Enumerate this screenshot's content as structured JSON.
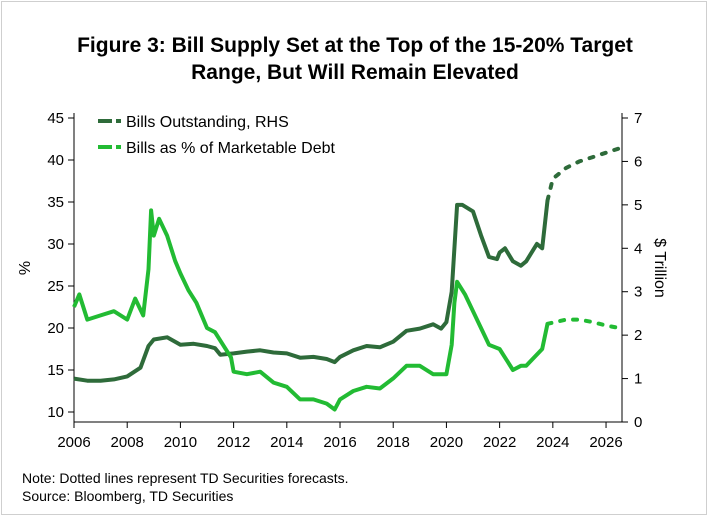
{
  "chart_data": {
    "type": "line",
    "title_lines": [
      "Figure 3: Bill Supply Set at the Top of the 15-20% Target",
      "Range, But Will Remain Elevated"
    ],
    "ylabel_left": "%",
    "ylabel_right": "$ Trillion",
    "ylim_left": [
      10,
      45
    ],
    "ylim_right": [
      0,
      7
    ],
    "xlim": [
      2006,
      2026.6
    ],
    "x_ticks": [
      "2006",
      "2008",
      "2010",
      "2012",
      "2014",
      "2016",
      "2018",
      "2020",
      "2022",
      "2024",
      "2026"
    ],
    "y_left_ticks": [
      "10",
      "15",
      "20",
      "25",
      "30",
      "35",
      "40",
      "45"
    ],
    "y_right_ticks": [
      "0",
      "1",
      "2",
      "3",
      "4",
      "5",
      "6",
      "7"
    ],
    "grid": false,
    "legend_position": "top-left",
    "series": [
      {
        "name": "Bills Outstanding, RHS",
        "axis": "right",
        "color": "#2e6b3a",
        "points": [
          [
            2006.0,
            1.0
          ],
          [
            2006.5,
            0.95
          ],
          [
            2007.0,
            0.95
          ],
          [
            2007.5,
            0.98
          ],
          [
            2008.0,
            1.05
          ],
          [
            2008.5,
            1.25
          ],
          [
            2008.8,
            1.75
          ],
          [
            2009.0,
            1.9
          ],
          [
            2009.5,
            1.95
          ],
          [
            2009.8,
            1.85
          ],
          [
            2010.0,
            1.78
          ],
          [
            2010.5,
            1.8
          ],
          [
            2011.0,
            1.75
          ],
          [
            2011.3,
            1.7
          ],
          [
            2011.5,
            1.55
          ],
          [
            2012.0,
            1.58
          ],
          [
            2012.5,
            1.62
          ],
          [
            2013.0,
            1.65
          ],
          [
            2013.5,
            1.6
          ],
          [
            2014.0,
            1.58
          ],
          [
            2014.5,
            1.48
          ],
          [
            2015.0,
            1.5
          ],
          [
            2015.5,
            1.45
          ],
          [
            2015.8,
            1.38
          ],
          [
            2016.0,
            1.5
          ],
          [
            2016.5,
            1.65
          ],
          [
            2017.0,
            1.75
          ],
          [
            2017.5,
            1.72
          ],
          [
            2018.0,
            1.85
          ],
          [
            2018.5,
            2.1
          ],
          [
            2019.0,
            2.15
          ],
          [
            2019.5,
            2.25
          ],
          [
            2019.8,
            2.15
          ],
          [
            2020.0,
            2.3
          ],
          [
            2020.2,
            3.0
          ],
          [
            2020.4,
            5.0
          ],
          [
            2020.6,
            5.0
          ],
          [
            2021.0,
            4.85
          ],
          [
            2021.3,
            4.3
          ],
          [
            2021.6,
            3.8
          ],
          [
            2021.9,
            3.75
          ],
          [
            2022.0,
            3.9
          ],
          [
            2022.2,
            4.0
          ],
          [
            2022.5,
            3.7
          ],
          [
            2022.8,
            3.6
          ],
          [
            2023.0,
            3.7
          ],
          [
            2023.4,
            4.1
          ],
          [
            2023.6,
            4.0
          ],
          [
            2023.8,
            5.1
          ]
        ],
        "forecast_points": [
          [
            2023.8,
            5.1
          ],
          [
            2024.0,
            5.6
          ],
          [
            2024.5,
            5.85
          ],
          [
            2025.0,
            6.0
          ],
          [
            2025.5,
            6.1
          ],
          [
            2026.0,
            6.2
          ],
          [
            2026.5,
            6.3
          ]
        ]
      },
      {
        "name": "Bills as % of Marketable Debt",
        "axis": "left",
        "color": "#22bb33",
        "points": [
          [
            2006.0,
            22.5
          ],
          [
            2006.2,
            24.0
          ],
          [
            2006.5,
            21.0
          ],
          [
            2007.0,
            21.5
          ],
          [
            2007.5,
            22.0
          ],
          [
            2008.0,
            21.0
          ],
          [
            2008.3,
            23.5
          ],
          [
            2008.6,
            21.5
          ],
          [
            2008.8,
            27.0
          ],
          [
            2008.9,
            34.0
          ],
          [
            2009.0,
            31.0
          ],
          [
            2009.2,
            33.0
          ],
          [
            2009.5,
            31.0
          ],
          [
            2009.8,
            28.0
          ],
          [
            2010.0,
            26.5
          ],
          [
            2010.3,
            24.5
          ],
          [
            2010.6,
            23.0
          ],
          [
            2011.0,
            20.0
          ],
          [
            2011.3,
            19.5
          ],
          [
            2011.6,
            18.0
          ],
          [
            2011.9,
            16.5
          ],
          [
            2012.0,
            14.8
          ],
          [
            2012.5,
            14.5
          ],
          [
            2013.0,
            14.8
          ],
          [
            2013.5,
            13.5
          ],
          [
            2014.0,
            13.0
          ],
          [
            2014.5,
            11.5
          ],
          [
            2015.0,
            11.5
          ],
          [
            2015.5,
            11.0
          ],
          [
            2015.8,
            10.3
          ],
          [
            2016.0,
            11.5
          ],
          [
            2016.5,
            12.5
          ],
          [
            2017.0,
            13.0
          ],
          [
            2017.5,
            12.8
          ],
          [
            2018.0,
            14.0
          ],
          [
            2018.5,
            15.5
          ],
          [
            2019.0,
            15.5
          ],
          [
            2019.5,
            14.5
          ],
          [
            2020.0,
            14.5
          ],
          [
            2020.2,
            18.0
          ],
          [
            2020.3,
            23.0
          ],
          [
            2020.4,
            25.5
          ],
          [
            2020.7,
            24.0
          ],
          [
            2021.0,
            22.0
          ],
          [
            2021.3,
            20.0
          ],
          [
            2021.6,
            18.0
          ],
          [
            2022.0,
            17.5
          ],
          [
            2022.3,
            16.0
          ],
          [
            2022.5,
            15.0
          ],
          [
            2022.8,
            15.5
          ],
          [
            2023.0,
            15.5
          ],
          [
            2023.3,
            16.5
          ],
          [
            2023.6,
            17.5
          ],
          [
            2023.8,
            20.5
          ]
        ],
        "forecast_points": [
          [
            2023.8,
            20.5
          ],
          [
            2024.5,
            21.0
          ],
          [
            2025.0,
            21.0
          ],
          [
            2025.5,
            20.7
          ],
          [
            2026.0,
            20.3
          ],
          [
            2026.5,
            20.0
          ]
        ]
      }
    ]
  },
  "notes": {
    "line1": "Note: Dotted lines represent TD Securities forecasts.",
    "line2": "Source: Bloomberg, TD Securities"
  }
}
